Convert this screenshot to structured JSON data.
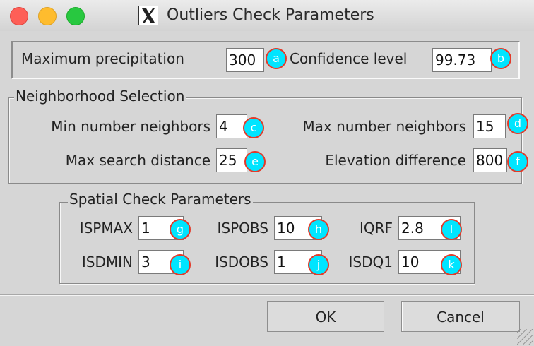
{
  "window": {
    "title": "Outliers Check Parameters"
  },
  "top": {
    "max_precip": {
      "label": "Maximum precipitation",
      "value": "300",
      "badge": "a"
    },
    "confidence": {
      "label": "Confidence level",
      "value": "99.73",
      "badge": "b"
    }
  },
  "neighborhood": {
    "legend": "Neighborhood Selection",
    "min_neighbors": {
      "label": "Min number neighbors",
      "value": "4",
      "badge": "c"
    },
    "max_neighbors": {
      "label": "Max number neighbors",
      "value": "15",
      "badge": "d"
    },
    "max_distance": {
      "label": "Max search distance",
      "value": "25",
      "badge": "e"
    },
    "elev_diff": {
      "label": "Elevation difference",
      "value": "800",
      "badge": "f"
    }
  },
  "spatial": {
    "legend": "Spatial Check Parameters",
    "ispmax": {
      "label": "ISPMAX",
      "value": "1",
      "badge": "g"
    },
    "ispobs": {
      "label": "ISPOBS",
      "value": "10",
      "badge": "h"
    },
    "iqrf": {
      "label": "IQRF",
      "value": "2.8",
      "badge": "l"
    },
    "isdmin": {
      "label": "ISDMIN",
      "value": "3",
      "badge": "i"
    },
    "isdobs": {
      "label": "ISDOBS",
      "value": "1",
      "badge": "j"
    },
    "isdq1": {
      "label": "ISDQ1",
      "value": "10",
      "badge": "k"
    }
  },
  "buttons": {
    "ok": "OK",
    "cancel": "Cancel"
  },
  "colors": {
    "badge_fill": "#00e5ff",
    "badge_border": "#e23a2a"
  },
  "icons": {
    "app": "x11-icon",
    "resize": "resize-grip-icon"
  }
}
